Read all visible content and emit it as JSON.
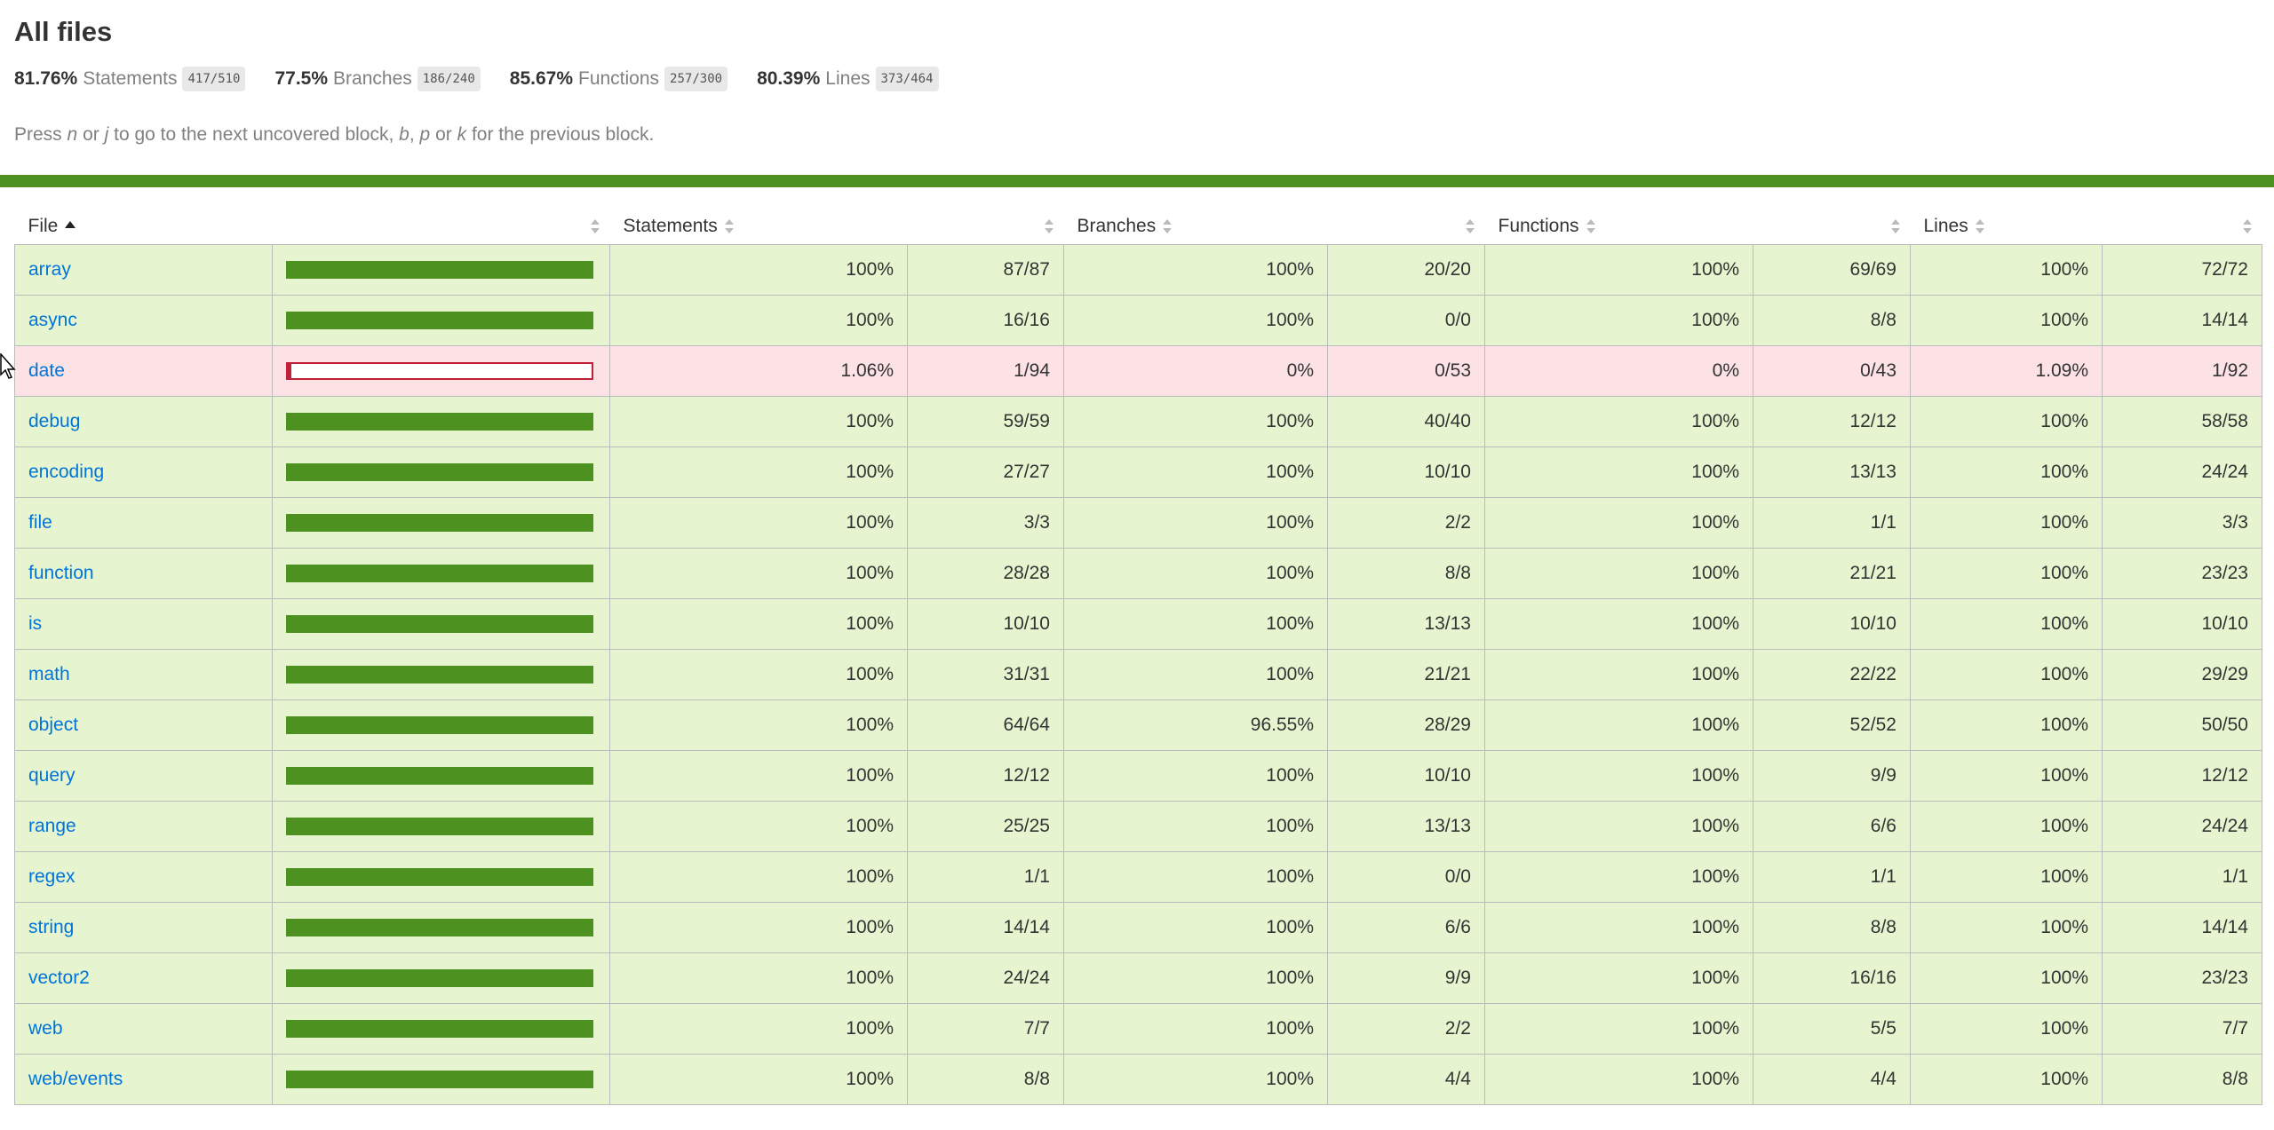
{
  "title": "All files",
  "summary": [
    {
      "pct": "81.76%",
      "label": "Statements",
      "frac": "417/510"
    },
    {
      "pct": "77.5%",
      "label": "Branches",
      "frac": "186/240"
    },
    {
      "pct": "85.67%",
      "label": "Functions",
      "frac": "257/300"
    },
    {
      "pct": "80.39%",
      "label": "Lines",
      "frac": "373/464"
    }
  ],
  "hint": {
    "press": "Press",
    "n": "n",
    "or1": "or",
    "j": "j",
    "next": "to go to the next uncovered block,",
    "b": "b",
    "comma": ",",
    "p": "p",
    "or2": "or",
    "k": "k",
    "prev": "for the previous block."
  },
  "colors": {
    "high_bg": "#e6f5d0",
    "low_bg": "#fce1e5",
    "bar_high": "#4d9221",
    "bar_low": "#c21f39",
    "link": "#0074d9",
    "status_bar": "#4d9221"
  },
  "headers": {
    "file": "File",
    "statements": "Statements",
    "branches": "Branches",
    "functions": "Functions",
    "lines": "Lines"
  },
  "rows": [
    {
      "file": "array",
      "coverage": 1.0,
      "status": "high",
      "stmt_pct": "100%",
      "stmt_frac": "87/87",
      "br_pct": "100%",
      "br_frac": "20/20",
      "fn_pct": "100%",
      "fn_frac": "69/69",
      "ln_pct": "100%",
      "ln_frac": "72/72"
    },
    {
      "file": "async",
      "coverage": 1.0,
      "status": "high",
      "stmt_pct": "100%",
      "stmt_frac": "16/16",
      "br_pct": "100%",
      "br_frac": "0/0",
      "fn_pct": "100%",
      "fn_frac": "8/8",
      "ln_pct": "100%",
      "ln_frac": "14/14"
    },
    {
      "file": "date",
      "coverage": 0.0106,
      "status": "low",
      "stmt_pct": "1.06%",
      "stmt_frac": "1/94",
      "br_pct": "0%",
      "br_frac": "0/53",
      "fn_pct": "0%",
      "fn_frac": "0/43",
      "ln_pct": "1.09%",
      "ln_frac": "1/92"
    },
    {
      "file": "debug",
      "coverage": 1.0,
      "status": "high",
      "stmt_pct": "100%",
      "stmt_frac": "59/59",
      "br_pct": "100%",
      "br_frac": "40/40",
      "fn_pct": "100%",
      "fn_frac": "12/12",
      "ln_pct": "100%",
      "ln_frac": "58/58"
    },
    {
      "file": "encoding",
      "coverage": 1.0,
      "status": "high",
      "stmt_pct": "100%",
      "stmt_frac": "27/27",
      "br_pct": "100%",
      "br_frac": "10/10",
      "fn_pct": "100%",
      "fn_frac": "13/13",
      "ln_pct": "100%",
      "ln_frac": "24/24"
    },
    {
      "file": "file",
      "coverage": 1.0,
      "status": "high",
      "stmt_pct": "100%",
      "stmt_frac": "3/3",
      "br_pct": "100%",
      "br_frac": "2/2",
      "fn_pct": "100%",
      "fn_frac": "1/1",
      "ln_pct": "100%",
      "ln_frac": "3/3"
    },
    {
      "file": "function",
      "coverage": 1.0,
      "status": "high",
      "stmt_pct": "100%",
      "stmt_frac": "28/28",
      "br_pct": "100%",
      "br_frac": "8/8",
      "fn_pct": "100%",
      "fn_frac": "21/21",
      "ln_pct": "100%",
      "ln_frac": "23/23"
    },
    {
      "file": "is",
      "coverage": 1.0,
      "status": "high",
      "stmt_pct": "100%",
      "stmt_frac": "10/10",
      "br_pct": "100%",
      "br_frac": "13/13",
      "fn_pct": "100%",
      "fn_frac": "10/10",
      "ln_pct": "100%",
      "ln_frac": "10/10"
    },
    {
      "file": "math",
      "coverage": 1.0,
      "status": "high",
      "stmt_pct": "100%",
      "stmt_frac": "31/31",
      "br_pct": "100%",
      "br_frac": "21/21",
      "fn_pct": "100%",
      "fn_frac": "22/22",
      "ln_pct": "100%",
      "ln_frac": "29/29"
    },
    {
      "file": "object",
      "coverage": 1.0,
      "status": "high",
      "stmt_pct": "100%",
      "stmt_frac": "64/64",
      "br_pct": "96.55%",
      "br_frac": "28/29",
      "fn_pct": "100%",
      "fn_frac": "52/52",
      "ln_pct": "100%",
      "ln_frac": "50/50"
    },
    {
      "file": "query",
      "coverage": 1.0,
      "status": "high",
      "stmt_pct": "100%",
      "stmt_frac": "12/12",
      "br_pct": "100%",
      "br_frac": "10/10",
      "fn_pct": "100%",
      "fn_frac": "9/9",
      "ln_pct": "100%",
      "ln_frac": "12/12"
    },
    {
      "file": "range",
      "coverage": 1.0,
      "status": "high",
      "stmt_pct": "100%",
      "stmt_frac": "25/25",
      "br_pct": "100%",
      "br_frac": "13/13",
      "fn_pct": "100%",
      "fn_frac": "6/6",
      "ln_pct": "100%",
      "ln_frac": "24/24"
    },
    {
      "file": "regex",
      "coverage": 1.0,
      "status": "high",
      "stmt_pct": "100%",
      "stmt_frac": "1/1",
      "br_pct": "100%",
      "br_frac": "0/0",
      "fn_pct": "100%",
      "fn_frac": "1/1",
      "ln_pct": "100%",
      "ln_frac": "1/1"
    },
    {
      "file": "string",
      "coverage": 1.0,
      "status": "high",
      "stmt_pct": "100%",
      "stmt_frac": "14/14",
      "br_pct": "100%",
      "br_frac": "6/6",
      "fn_pct": "100%",
      "fn_frac": "8/8",
      "ln_pct": "100%",
      "ln_frac": "14/14"
    },
    {
      "file": "vector2",
      "coverage": 1.0,
      "status": "high",
      "stmt_pct": "100%",
      "stmt_frac": "24/24",
      "br_pct": "100%",
      "br_frac": "9/9",
      "fn_pct": "100%",
      "fn_frac": "16/16",
      "ln_pct": "100%",
      "ln_frac": "23/23"
    },
    {
      "file": "web",
      "coverage": 1.0,
      "status": "high",
      "stmt_pct": "100%",
      "stmt_frac": "7/7",
      "br_pct": "100%",
      "br_frac": "2/2",
      "fn_pct": "100%",
      "fn_frac": "5/5",
      "ln_pct": "100%",
      "ln_frac": "7/7"
    },
    {
      "file": "web/events",
      "coverage": 1.0,
      "status": "high",
      "stmt_pct": "100%",
      "stmt_frac": "8/8",
      "br_pct": "100%",
      "br_frac": "4/4",
      "fn_pct": "100%",
      "fn_frac": "4/4",
      "ln_pct": "100%",
      "ln_frac": "8/8"
    }
  ]
}
